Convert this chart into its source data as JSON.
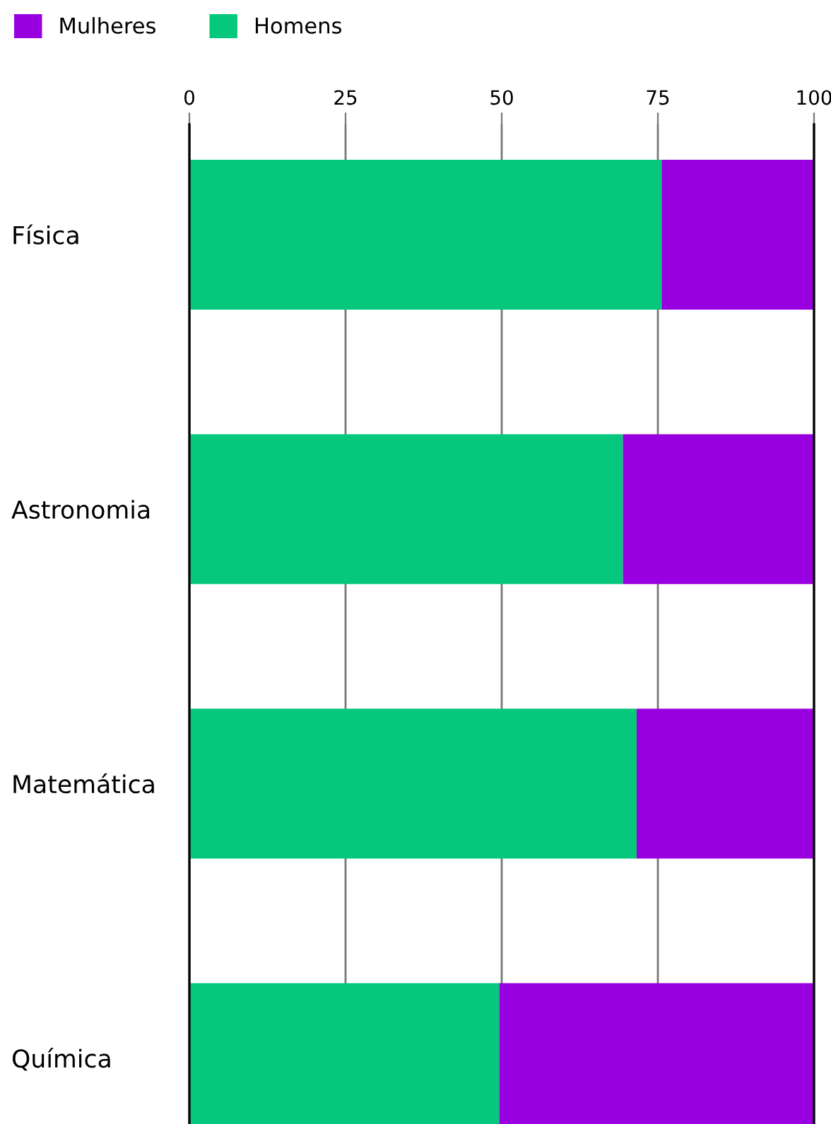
{
  "chart_data": {
    "type": "bar",
    "orientation": "horizontal",
    "stacked": true,
    "categories": [
      "Física",
      "Astronomia",
      "Matemática",
      "Química"
    ],
    "series": [
      {
        "name": "Homens",
        "color": "#05c87c",
        "values": [
          75.6,
          69.4,
          71.6,
          49.6
        ]
      },
      {
        "name": "Mulheres",
        "color": "#9900e0",
        "values": [
          24.4,
          30.6,
          28.4,
          50.4
        ]
      }
    ],
    "xlim": [
      0,
      100
    ],
    "xticks": [
      0,
      25,
      50,
      75,
      100
    ],
    "grid": "x",
    "legend": "top left"
  }
}
